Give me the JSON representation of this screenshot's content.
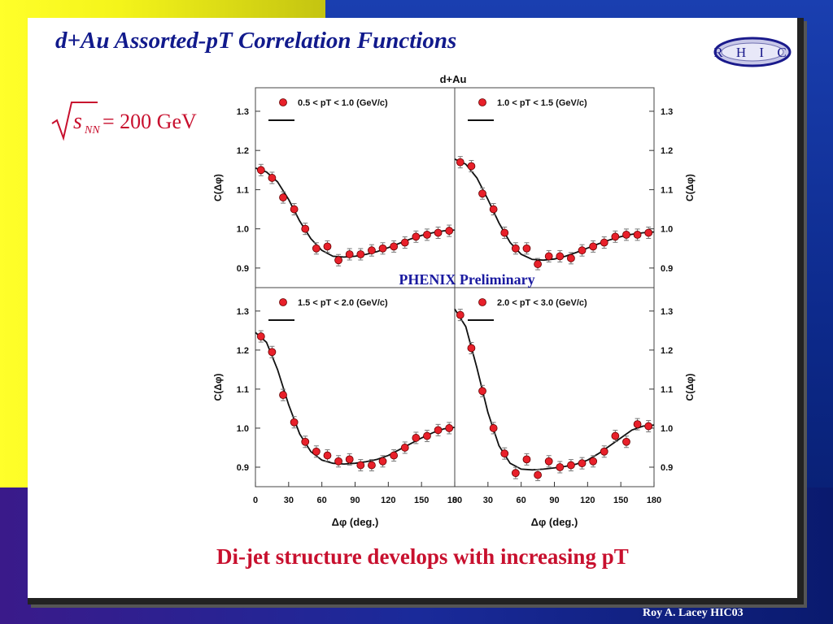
{
  "slide": {
    "title": "d+Au Assorted-pT Correlation Functions",
    "logo_text": "RHIC",
    "equation": {
      "symbol": "s",
      "subscript": "NN",
      "rhs": "= 200 GeV"
    },
    "caption": "Di-jet structure develops with increasing pT",
    "footer": "Roy A. Lacey HIC03"
  },
  "colors": {
    "title": "#111a8c",
    "caption": "#c8102e",
    "point": "#e8202a",
    "watermark": "#1a1aa0"
  },
  "chart_data": {
    "type": "scatter",
    "title": "d+Au",
    "watermark": "PHENIX Preliminary",
    "xlabel": "Δφ (deg.)",
    "ylabel": "C(Δφ)",
    "xlim": [
      0,
      180
    ],
    "ylim": [
      0.85,
      1.36
    ],
    "xticks": [
      0,
      30,
      60,
      90,
      120,
      150,
      180
    ],
    "yticks": [
      0.9,
      1.0,
      1.1,
      1.2,
      1.3
    ],
    "panels": [
      {
        "label": "0.5 < pT < 1.0 (GeV/c)",
        "x": [
          5,
          15,
          25,
          35,
          45,
          55,
          65,
          75,
          85,
          95,
          105,
          115,
          125,
          135,
          145,
          155,
          165,
          175
        ],
        "y": [
          1.15,
          1.13,
          1.08,
          1.05,
          1.0,
          0.95,
          0.955,
          0.92,
          0.935,
          0.935,
          0.945,
          0.95,
          0.955,
          0.965,
          0.98,
          0.985,
          0.99,
          0.995
        ],
        "fit": [
          [
            0,
            1.155
          ],
          [
            10,
            1.145
          ],
          [
            20,
            1.12
          ],
          [
            30,
            1.075
          ],
          [
            40,
            1.02
          ],
          [
            50,
            0.975
          ],
          [
            60,
            0.945
          ],
          [
            70,
            0.93
          ],
          [
            80,
            0.928
          ],
          [
            90,
            0.93
          ],
          [
            100,
            0.935
          ],
          [
            110,
            0.942
          ],
          [
            120,
            0.952
          ],
          [
            130,
            0.963
          ],
          [
            140,
            0.974
          ],
          [
            150,
            0.983
          ],
          [
            160,
            0.99
          ],
          [
            170,
            0.995
          ],
          [
            180,
            0.997
          ]
        ]
      },
      {
        "label": "1.0 < pT < 1.5 (GeV/c)",
        "x": [
          5,
          15,
          25,
          35,
          45,
          55,
          65,
          75,
          85,
          95,
          105,
          115,
          125,
          135,
          145,
          155,
          165,
          175
        ],
        "y": [
          1.17,
          1.16,
          1.09,
          1.05,
          0.99,
          0.95,
          0.95,
          0.91,
          0.93,
          0.93,
          0.925,
          0.945,
          0.955,
          0.965,
          0.98,
          0.985,
          0.985,
          0.99
        ],
        "fit": [
          [
            0,
            1.178
          ],
          [
            10,
            1.165
          ],
          [
            20,
            1.13
          ],
          [
            30,
            1.075
          ],
          [
            40,
            1.015
          ],
          [
            50,
            0.965
          ],
          [
            60,
            0.935
          ],
          [
            70,
            0.922
          ],
          [
            80,
            0.92
          ],
          [
            90,
            0.923
          ],
          [
            100,
            0.93
          ],
          [
            110,
            0.94
          ],
          [
            120,
            0.951
          ],
          [
            130,
            0.962
          ],
          [
            140,
            0.972
          ],
          [
            150,
            0.98
          ],
          [
            160,
            0.986
          ],
          [
            170,
            0.99
          ],
          [
            180,
            0.992
          ]
        ]
      },
      {
        "label": "1.5 < pT < 2.0 (GeV/c)",
        "x": [
          5,
          15,
          25,
          35,
          45,
          55,
          65,
          75,
          85,
          95,
          105,
          115,
          125,
          135,
          145,
          155,
          165,
          175
        ],
        "y": [
          1.235,
          1.195,
          1.085,
          1.015,
          0.965,
          0.94,
          0.93,
          0.915,
          0.92,
          0.905,
          0.905,
          0.915,
          0.93,
          0.95,
          0.975,
          0.98,
          0.995,
          1.0
        ],
        "fit": [
          [
            0,
            1.245
          ],
          [
            10,
            1.22
          ],
          [
            20,
            1.15
          ],
          [
            30,
            1.06
          ],
          [
            40,
            0.985
          ],
          [
            50,
            0.94
          ],
          [
            60,
            0.918
          ],
          [
            70,
            0.91
          ],
          [
            80,
            0.908
          ],
          [
            90,
            0.91
          ],
          [
            100,
            0.914
          ],
          [
            110,
            0.92
          ],
          [
            120,
            0.93
          ],
          [
            130,
            0.945
          ],
          [
            140,
            0.96
          ],
          [
            150,
            0.975
          ],
          [
            160,
            0.988
          ],
          [
            170,
            0.998
          ],
          [
            180,
            1.002
          ]
        ]
      },
      {
        "label": "2.0 < pT < 3.0 (GeV/c)",
        "x": [
          5,
          15,
          25,
          35,
          45,
          55,
          65,
          75,
          85,
          95,
          105,
          115,
          125,
          135,
          145,
          155,
          165,
          175
        ],
        "y": [
          1.29,
          1.205,
          1.095,
          1.0,
          0.935,
          0.885,
          0.92,
          0.88,
          0.915,
          0.9,
          0.905,
          0.91,
          0.915,
          0.94,
          0.98,
          0.965,
          1.01,
          1.005
        ],
        "fit": [
          [
            0,
            1.305
          ],
          [
            10,
            1.26
          ],
          [
            20,
            1.155
          ],
          [
            30,
            1.04
          ],
          [
            40,
            0.955
          ],
          [
            50,
            0.91
          ],
          [
            60,
            0.895
          ],
          [
            70,
            0.893
          ],
          [
            80,
            0.895
          ],
          [
            90,
            0.898
          ],
          [
            100,
            0.902
          ],
          [
            110,
            0.908
          ],
          [
            120,
            0.918
          ],
          [
            130,
            0.935
          ],
          [
            140,
            0.955
          ],
          [
            150,
            0.975
          ],
          [
            160,
            0.995
          ],
          [
            170,
            1.005
          ],
          [
            180,
            1.008
          ]
        ]
      }
    ]
  }
}
